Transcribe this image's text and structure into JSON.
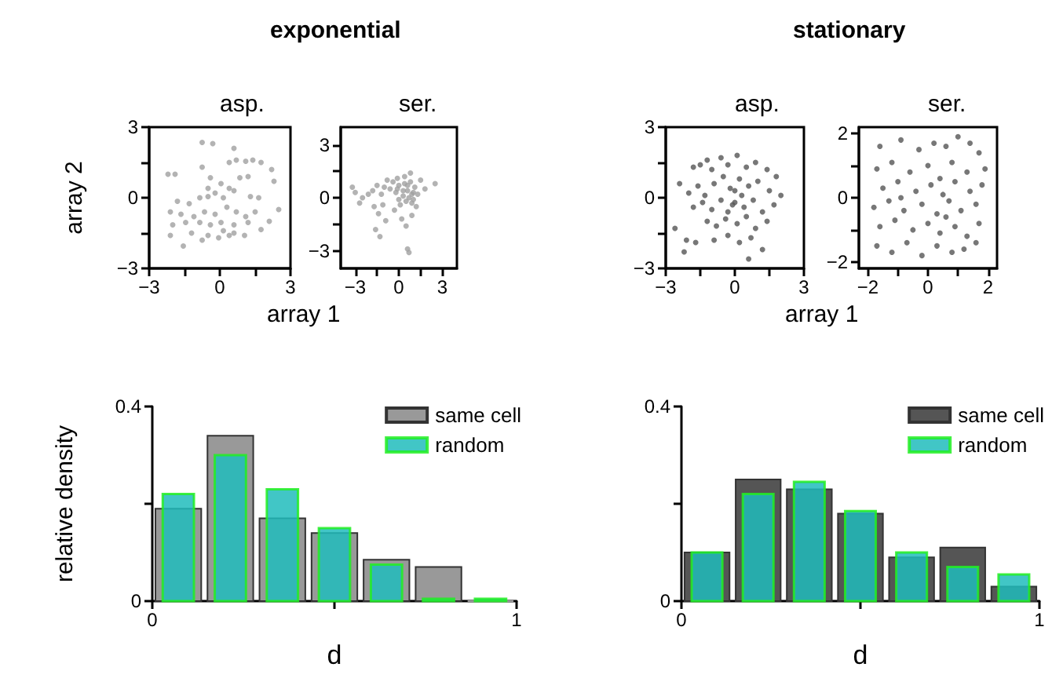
{
  "chart_data": [
    {
      "type": "scatter",
      "annotations": [
        "exponential"
      ],
      "title": "asp.",
      "ylabel": "array 2",
      "xlabel": "array 1",
      "color": "#a0a0a0",
      "marker": "circle",
      "xlim": [
        -3,
        3
      ],
      "ylim": [
        -3,
        3
      ],
      "xticks": [
        {
          "value": -3,
          "label": "−3"
        },
        {
          "value": -1.5,
          "label": null
        },
        0,
        {
          "value": 1.5,
          "label": null
        },
        3
      ],
      "yticks": [
        {
          "value": -3,
          "label": "−3"
        },
        {
          "value": -1.5,
          "label": null
        },
        0,
        {
          "value": 1.5,
          "label": null
        },
        3
      ],
      "x": [
        -0.75,
        -0.3,
        0.6,
        -2.2,
        -1.9,
        -0.75,
        -0.4,
        0.4,
        0.7,
        1.1,
        1.4,
        1.75,
        -0.5,
        0.05,
        0.4,
        0.85,
        1.2,
        -1.8,
        -1.3,
        -0.85,
        -0.5,
        -0.2,
        0.15,
        0.6,
        1.3,
        1.65,
        -2.1,
        -1.65,
        -1.1,
        -0.65,
        -0.2,
        0.3,
        0.7,
        1.1,
        1.5,
        -2.0,
        -1.45,
        -0.85,
        -0.4,
        0.05,
        0.6,
        1.2,
        -2.1,
        -1.2,
        -0.5,
        0.15,
        0.6,
        1.05,
        -1.55,
        -0.75,
        -0.05,
        0.4,
        1.75,
        2.3,
        2.5,
        2.1,
        2.2
      ],
      "values": [
        2.35,
        2.3,
        2.1,
        1.0,
        1.0,
        1.3,
        0.85,
        1.5,
        1.6,
        1.55,
        1.6,
        1.5,
        0.4,
        0.6,
        0.4,
        0.85,
        0.9,
        -0.15,
        -0.25,
        0,
        0.05,
        0.2,
        0,
        0.3,
        0.05,
        0,
        -0.6,
        -0.7,
        -0.8,
        -0.6,
        -0.7,
        -0.4,
        -0.6,
        -0.8,
        -0.6,
        -1.15,
        -1.05,
        -1.05,
        -1.15,
        -1.05,
        -1.15,
        -1.05,
        -1.6,
        -1.5,
        -1.6,
        -1.4,
        -1.5,
        -1.6,
        -2.05,
        -1.8,
        -1.7,
        -1.6,
        -1.35,
        0.7,
        -0.5,
        -1.0,
        1.2
      ]
    },
    {
      "type": "scatter",
      "title": "ser.",
      "color": "#a0a0a0",
      "marker": "circle",
      "xlim": [
        -4,
        4
      ],
      "ylim": [
        -4,
        4
      ],
      "xticks": [
        {
          "value": -3,
          "label": "−3"
        },
        {
          "value": -1.5,
          "label": null
        },
        0,
        {
          "value": 1.5,
          "label": null
        },
        3
      ],
      "yticks": [
        {
          "value": -3,
          "label": "−3"
        },
        {
          "value": -1.5,
          "label": null
        },
        0,
        {
          "value": 1.5,
          "label": null
        },
        3
      ],
      "x": [
        -0.1,
        0.4,
        0.6,
        0.8,
        1.0,
        0.3,
        0.5,
        0.7,
        0.9,
        1.1,
        1.3,
        0.1,
        0.4,
        0.0,
        -0.2,
        -0.4,
        -0.6,
        -0.8,
        -1.0,
        -1.2,
        -1.5,
        -1.8,
        -2.1,
        -2.5,
        -3.2,
        -3.0,
        -2.7,
        -1.7,
        -1.4,
        -1.1,
        -0.9,
        -1.6,
        -1.3,
        -0.3,
        0.2,
        0.5,
        0.9,
        1.2,
        0.6,
        0.7,
        1.5,
        1.8,
        2.5,
        0.8,
        0.0,
        0.3,
        0.6,
        0.9,
        -0.1,
        1.0
      ],
      "values": [
        1.1,
        0.8,
        0.4,
        0.9,
        0.3,
        0.1,
        -0.2,
        0.0,
        -0.3,
        0.6,
        0.2,
        -0.4,
        1.2,
        0.7,
        0.3,
        0.9,
        0.5,
        1.0,
        0.6,
        0.2,
        0.7,
        0.4,
        0.2,
        0.0,
        0.6,
        0.3,
        -0.3,
        -0.5,
        -0.9,
        -0.4,
        -1.3,
        -1.8,
        -2.2,
        -0.7,
        -1.2,
        -1.6,
        -1.0,
        -0.5,
        -2.9,
        -3.1,
        1.0,
        0.5,
        0.8,
        1.4,
        -0.1,
        0.4,
        0.7,
        0.2,
        0.5,
        -0.1
      ]
    },
    {
      "type": "scatter",
      "annotations": [
        "stationary"
      ],
      "title": "asp.",
      "xlabel": "array 1",
      "color": "#555555",
      "marker": "circle",
      "xlim": [
        -3,
        3
      ],
      "ylim": [
        -3,
        3
      ],
      "xticks": [
        {
          "value": -3,
          "label": "−3"
        },
        {
          "value": -1.5,
          "label": null
        },
        0,
        {
          "value": 1.5,
          "label": null
        },
        3
      ],
      "yticks": [
        {
          "value": -3,
          "label": "−3"
        },
        {
          "value": -1.5,
          "label": null
        },
        0,
        {
          "value": 1.5,
          "label": null
        },
        3
      ],
      "x": [
        -2.4,
        -2.6,
        -1.8,
        -1.5,
        -1.2,
        -1.0,
        -0.6,
        -0.3,
        0.1,
        0.5,
        0.9,
        1.4,
        1.8,
        -2.0,
        -1.6,
        -1.3,
        -0.9,
        -0.5,
        -0.2,
        0.2,
        0.6,
        1.0,
        1.5,
        2.0,
        -1.8,
        -1.4,
        -1.0,
        -0.6,
        -0.3,
        0.0,
        0.4,
        0.8,
        1.2,
        1.7,
        -1.2,
        -0.8,
        -0.4,
        0.1,
        0.5,
        0.9,
        1.4,
        -2.1,
        -1.7,
        -0.9,
        -0.3,
        0.2,
        0.7,
        -2.2,
        0.6,
        1.2,
        0.0,
        -0.1,
        0.3
      ],
      "values": [
        0.6,
        -1.3,
        1.3,
        1.4,
        1.6,
        1.2,
        1.7,
        1.4,
        1.8,
        1.3,
        1.5,
        1.2,
        0.9,
        0.2,
        0.5,
        0.1,
        0.6,
        0.9,
        0.4,
        0.8,
        0.5,
        0.7,
        0.3,
        0.1,
        -0.4,
        -0.2,
        -0.5,
        -0.1,
        -0.6,
        -0.2,
        -0.4,
        -0.1,
        -0.6,
        -0.3,
        -1.0,
        -1.2,
        -0.9,
        -1.1,
        -0.8,
        -1.3,
        -1.0,
        -1.8,
        -1.9,
        -1.8,
        -1.6,
        -1.9,
        -1.7,
        -2.3,
        -2.6,
        -2.2,
        0.3,
        -0.3,
        0.1
      ]
    },
    {
      "type": "scatter",
      "title": "ser.",
      "color": "#555555",
      "marker": "circle",
      "xlim": [
        -2.3,
        2.3
      ],
      "ylim": [
        -2.2,
        2.2
      ],
      "xticks": [
        {
          "value": -2,
          "label": "−2"
        },
        {
          "value": -1,
          "label": null
        },
        0,
        {
          "value": 1,
          "label": null
        },
        2
      ],
      "yticks": [
        {
          "value": -2,
          "label": "−2"
        },
        {
          "value": -1,
          "label": null
        },
        0,
        {
          "value": 1,
          "label": null
        },
        2
      ],
      "x": [
        -1.6,
        -0.9,
        -0.3,
        0.2,
        0.6,
        1.0,
        1.4,
        1.7,
        -1.7,
        -1.2,
        -0.6,
        0.0,
        0.4,
        0.8,
        1.3,
        1.9,
        -1.5,
        -1.0,
        -0.4,
        0.1,
        0.5,
        0.9,
        1.4,
        1.8,
        -1.8,
        -1.3,
        -0.8,
        -0.2,
        0.3,
        0.7,
        1.1,
        1.6,
        -1.6,
        -1.1,
        -0.5,
        0.0,
        0.4,
        0.9,
        1.3,
        1.7,
        -1.7,
        -1.2,
        -0.7,
        -0.2,
        0.3,
        0.8,
        1.2,
        1.6,
        -0.9,
        0.6
      ],
      "values": [
        1.6,
        1.8,
        1.5,
        1.7,
        1.6,
        1.9,
        1.7,
        1.4,
        0.9,
        1.1,
        0.8,
        1.0,
        0.6,
        1.1,
        0.8,
        0.9,
        0.3,
        0.5,
        0.2,
        0.4,
        0.1,
        0.5,
        0.2,
        0.4,
        -0.3,
        -0.1,
        -0.4,
        -0.2,
        -0.5,
        -0.1,
        -0.4,
        -0.2,
        -0.9,
        -0.7,
        -1.0,
        -0.8,
        -1.1,
        -0.9,
        -1.2,
        -0.8,
        -1.5,
        -1.7,
        -1.4,
        -1.8,
        -1.5,
        -1.7,
        -1.6,
        -1.4,
        0.0,
        -0.6
      ]
    },
    {
      "type": "histogram",
      "ylabel": "relative density",
      "xlabel": "d",
      "legend": "top right",
      "bins": [
        0,
        0.1429,
        0.2857,
        0.4286,
        0.5714,
        0.7143,
        0.8571,
        1
      ],
      "xlim": [
        0,
        1
      ],
      "ylim": [
        0,
        0.4
      ],
      "xticks": [
        0,
        {
          "value": 0.5,
          "label": null
        },
        1
      ],
      "yticks": [
        0,
        {
          "value": 0.2,
          "label": null
        },
        0.4
      ],
      "series": [
        {
          "name": "same cell",
          "color": "#999999",
          "values": [
            0.19,
            0.34,
            0.17,
            0.14,
            0.085,
            0.07,
            0
          ]
        },
        {
          "name": "random",
          "color": "#20bcbc",
          "values": [
            0.22,
            0.3,
            0.23,
            0.15,
            0.075,
            0.005,
            0.005
          ]
        }
      ]
    },
    {
      "type": "histogram",
      "xlabel": "d",
      "legend": "top right",
      "bins": [
        0,
        0.1429,
        0.2857,
        0.4286,
        0.5714,
        0.7143,
        0.8571,
        1
      ],
      "xlim": [
        0,
        1
      ],
      "ylim": [
        0,
        0.4
      ],
      "xticks": [
        0,
        {
          "value": 0.5,
          "label": null
        },
        1
      ],
      "yticks": [
        0,
        {
          "value": 0.2,
          "label": null
        },
        0.4
      ],
      "series": [
        {
          "name": "same cell",
          "color": "#555555",
          "values": [
            0.1,
            0.25,
            0.23,
            0.18,
            0.09,
            0.11,
            0.03
          ]
        },
        {
          "name": "random",
          "color": "#20bcbc",
          "values": [
            0.1,
            0.22,
            0.245,
            0.185,
            0.1,
            0.07,
            0.055
          ]
        }
      ]
    }
  ]
}
